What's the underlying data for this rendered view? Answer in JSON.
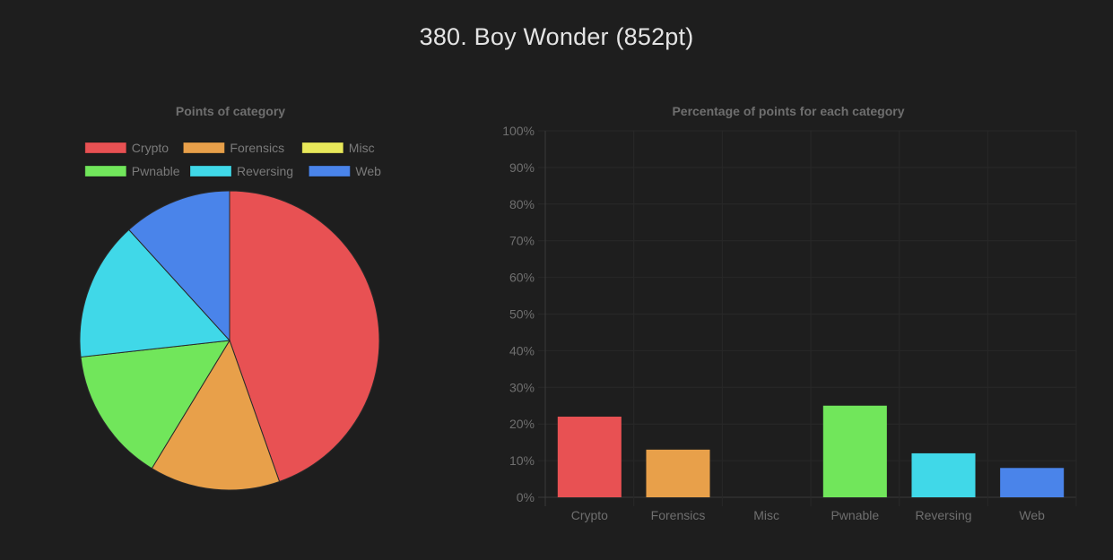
{
  "page": {
    "title": "380. Boy Wonder (852pt)"
  },
  "chart_data": [
    {
      "type": "pie",
      "title": "Points of category",
      "legend_position": "top",
      "categories": [
        "Crypto",
        "Forensics",
        "Misc",
        "Pwnable",
        "Reversing",
        "Web"
      ],
      "values": [
        380,
        120,
        0,
        124,
        128,
        100
      ],
      "colors": [
        "#e85153",
        "#e8a04a",
        "#e8e85a",
        "#71e65b",
        "#40d8e8",
        "#4a84ea"
      ]
    },
    {
      "type": "bar",
      "title": "Percentage of points for each category",
      "categories": [
        "Crypto",
        "Forensics",
        "Misc",
        "Pwnable",
        "Reversing",
        "Web"
      ],
      "values": [
        22,
        13,
        0,
        25,
        12,
        8
      ],
      "colors": [
        "#e85153",
        "#e8a04a",
        "#e8e85a",
        "#71e65b",
        "#40d8e8",
        "#4a84ea"
      ],
      "ylim": [
        0,
        100
      ],
      "yticks": [
        0,
        10,
        20,
        30,
        40,
        50,
        60,
        70,
        80,
        90,
        100
      ],
      "ytick_suffix": "%",
      "grid": true,
      "xlabel": "",
      "ylabel": ""
    }
  ]
}
